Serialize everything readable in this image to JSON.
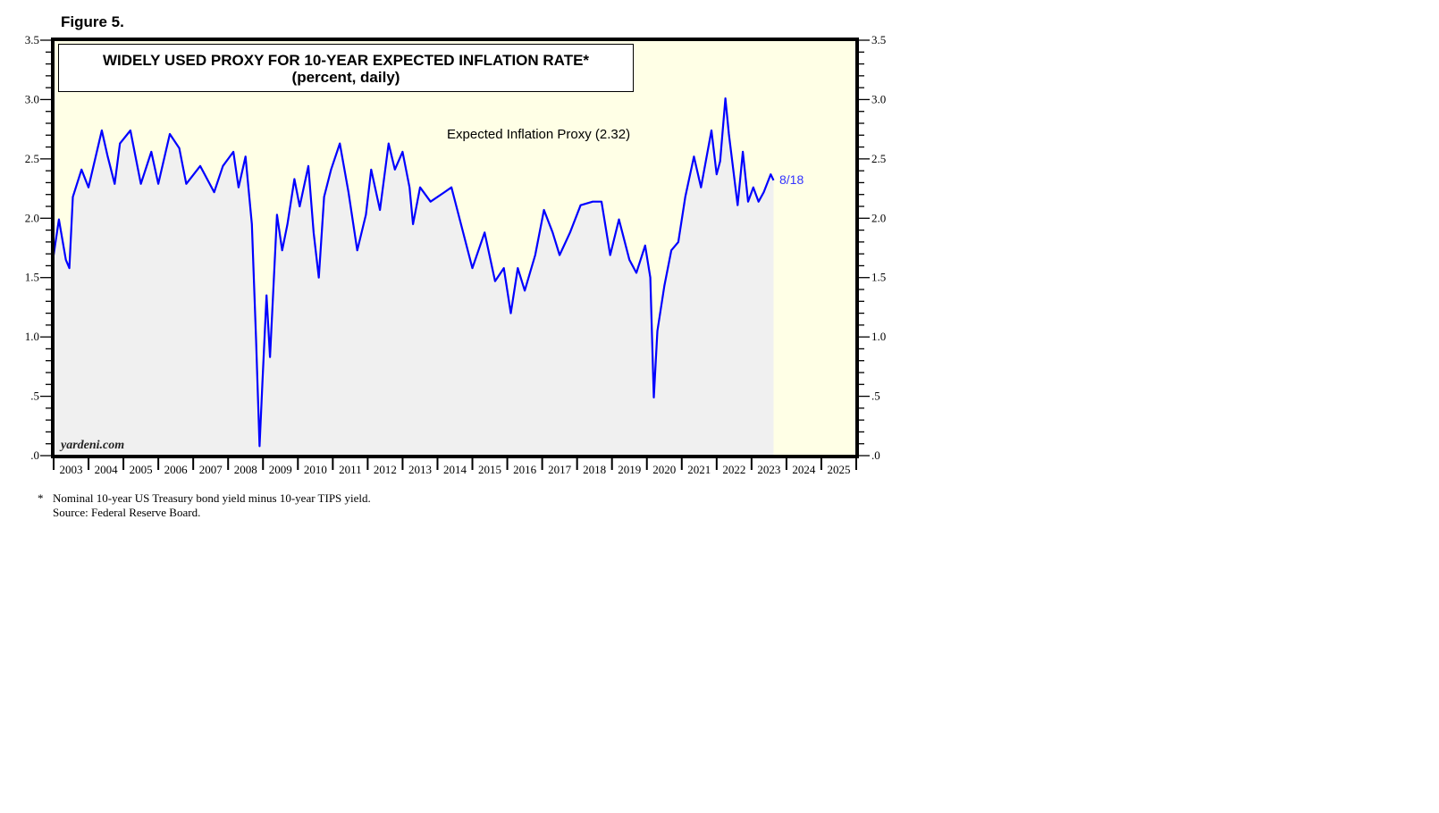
{
  "figure_label": "Figure 5.",
  "chart_data": {
    "type": "area",
    "title": "WIDELY USED PROXY FOR 10-YEAR EXPECTED INFLATION RATE*",
    "subtitle": "(percent, daily)",
    "ylim": [
      0,
      3.5
    ],
    "xlim": [
      2003,
      2026
    ],
    "y_ticks": [
      ".0",
      ".5",
      "1.0",
      "1.5",
      "2.0",
      "2.5",
      "3.0",
      "3.5"
    ],
    "x_ticks": [
      "2003",
      "2004",
      "2005",
      "2006",
      "2007",
      "2008",
      "2009",
      "2010",
      "2011",
      "2012",
      "2013",
      "2014",
      "2015",
      "2016",
      "2017",
      "2018",
      "2019",
      "2020",
      "2021",
      "2022",
      "2023",
      "2024",
      "2025"
    ],
    "grid": false,
    "series": [
      {
        "name": "Expected Inflation Proxy (2.32)",
        "color": "#0000ff",
        "end_label": "8/18",
        "points": [
          [
            2003.0,
            1.69
          ],
          [
            2003.15,
            1.99
          ],
          [
            2003.35,
            1.65
          ],
          [
            2003.45,
            1.58
          ],
          [
            2003.55,
            2.18
          ],
          [
            2003.8,
            2.41
          ],
          [
            2004.0,
            2.26
          ],
          [
            2004.38,
            2.74
          ],
          [
            2004.55,
            2.52
          ],
          [
            2004.75,
            2.29
          ],
          [
            2004.9,
            2.63
          ],
          [
            2005.2,
            2.74
          ],
          [
            2005.5,
            2.29
          ],
          [
            2005.8,
            2.56
          ],
          [
            2006.0,
            2.29
          ],
          [
            2006.33,
            2.71
          ],
          [
            2006.6,
            2.59
          ],
          [
            2006.8,
            2.29
          ],
          [
            2007.2,
            2.44
          ],
          [
            2007.6,
            2.22
          ],
          [
            2007.85,
            2.44
          ],
          [
            2008.15,
            2.56
          ],
          [
            2008.3,
            2.26
          ],
          [
            2008.5,
            2.52
          ],
          [
            2008.68,
            1.95
          ],
          [
            2008.8,
            0.98
          ],
          [
            2008.9,
            0.08
          ],
          [
            2008.98,
            0.6
          ],
          [
            2009.1,
            1.35
          ],
          [
            2009.2,
            0.83
          ],
          [
            2009.3,
            1.43
          ],
          [
            2009.4,
            2.03
          ],
          [
            2009.55,
            1.73
          ],
          [
            2009.7,
            1.95
          ],
          [
            2009.9,
            2.33
          ],
          [
            2010.05,
            2.1
          ],
          [
            2010.3,
            2.44
          ],
          [
            2010.45,
            1.88
          ],
          [
            2010.6,
            1.5
          ],
          [
            2010.75,
            2.18
          ],
          [
            2010.95,
            2.41
          ],
          [
            2011.2,
            2.63
          ],
          [
            2011.45,
            2.22
          ],
          [
            2011.7,
            1.73
          ],
          [
            2011.95,
            2.03
          ],
          [
            2012.1,
            2.41
          ],
          [
            2012.35,
            2.07
          ],
          [
            2012.6,
            2.63
          ],
          [
            2012.78,
            2.41
          ],
          [
            2013.0,
            2.56
          ],
          [
            2013.2,
            2.26
          ],
          [
            2013.3,
            1.95
          ],
          [
            2013.5,
            2.26
          ],
          [
            2013.8,
            2.14
          ],
          [
            2014.2,
            2.22
          ],
          [
            2014.4,
            2.26
          ],
          [
            2014.7,
            1.92
          ],
          [
            2015.0,
            1.58
          ],
          [
            2015.35,
            1.88
          ],
          [
            2015.65,
            1.47
          ],
          [
            2015.9,
            1.58
          ],
          [
            2016.1,
            1.2
          ],
          [
            2016.3,
            1.58
          ],
          [
            2016.5,
            1.39
          ],
          [
            2016.8,
            1.69
          ],
          [
            2017.05,
            2.07
          ],
          [
            2017.3,
            1.88
          ],
          [
            2017.5,
            1.69
          ],
          [
            2017.8,
            1.88
          ],
          [
            2018.1,
            2.11
          ],
          [
            2018.45,
            2.14
          ],
          [
            2018.7,
            2.14
          ],
          [
            2018.95,
            1.69
          ],
          [
            2019.2,
            1.99
          ],
          [
            2019.5,
            1.65
          ],
          [
            2019.7,
            1.54
          ],
          [
            2019.95,
            1.77
          ],
          [
            2020.1,
            1.5
          ],
          [
            2020.2,
            0.49
          ],
          [
            2020.3,
            1.05
          ],
          [
            2020.5,
            1.43
          ],
          [
            2020.7,
            1.73
          ],
          [
            2020.9,
            1.8
          ],
          [
            2021.1,
            2.18
          ],
          [
            2021.35,
            2.52
          ],
          [
            2021.55,
            2.26
          ],
          [
            2021.85,
            2.74
          ],
          [
            2022.0,
            2.37
          ],
          [
            2022.1,
            2.48
          ],
          [
            2022.25,
            3.01
          ],
          [
            2022.35,
            2.71
          ],
          [
            2022.6,
            2.11
          ],
          [
            2022.75,
            2.56
          ],
          [
            2022.9,
            2.14
          ],
          [
            2023.05,
            2.26
          ],
          [
            2023.2,
            2.14
          ],
          [
            2023.35,
            2.22
          ],
          [
            2023.55,
            2.37
          ],
          [
            2023.63,
            2.32
          ]
        ]
      }
    ],
    "watermark": "yardeni.com",
    "colors": {
      "background": "#ffffe6",
      "fill": "#f0f0f0",
      "line": "#0000ff"
    }
  },
  "footnote": {
    "marker": "*",
    "lines": [
      "Nominal 10-year US Treasury bond yield minus 10-year TIPS yield.",
      "Source: Federal Reserve Board."
    ]
  }
}
